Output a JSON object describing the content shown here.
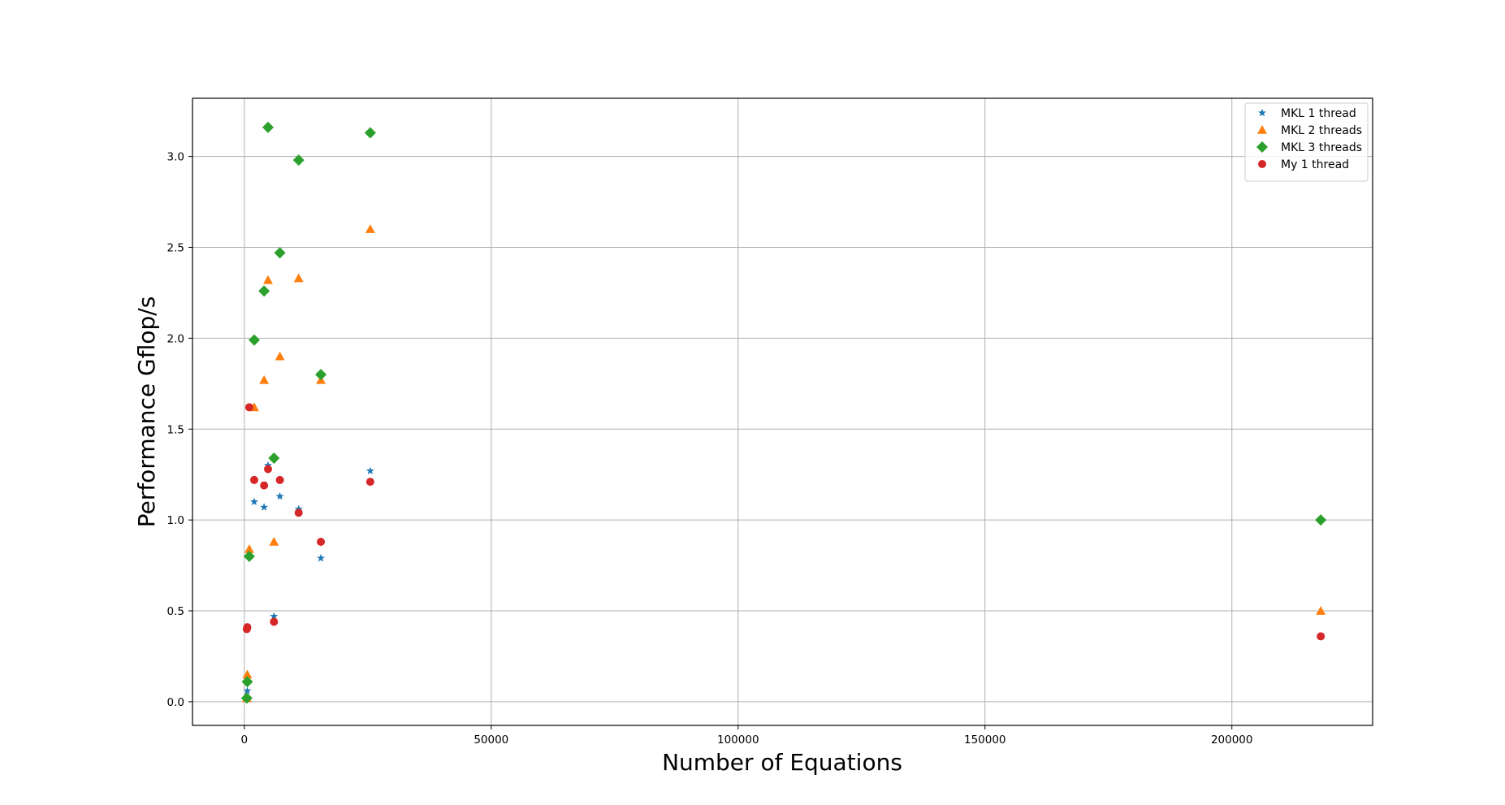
{
  "chart_data": {
    "type": "scatter",
    "title": "",
    "xlabel": "Number of Equations",
    "ylabel": "Performance Gflop/s",
    "xlim": [
      -10500,
      228500
    ],
    "ylim": [
      -0.13,
      3.32
    ],
    "xticks": [
      0,
      50000,
      100000,
      150000,
      200000
    ],
    "xtick_labels": [
      "0",
      "50000",
      "100000",
      "150000",
      "200000"
    ],
    "yticks": [
      0.0,
      0.5,
      1.0,
      1.5,
      2.0,
      2.5,
      3.0
    ],
    "ytick_labels": [
      "0.0",
      "0.5",
      "1.0",
      "1.5",
      "2.0",
      "2.5",
      "3.0"
    ],
    "grid": true,
    "legend_position": "top-right",
    "series": [
      {
        "name": "MKL 1 thread",
        "marker": "star",
        "color": "#1f77b4",
        "points": [
          {
            "x": 500,
            "y": 0.02
          },
          {
            "x": 600,
            "y": 0.06
          },
          {
            "x": 2000,
            "y": 1.1
          },
          {
            "x": 4000,
            "y": 1.07
          },
          {
            "x": 4800,
            "y": 1.3
          },
          {
            "x": 6000,
            "y": 0.47
          },
          {
            "x": 7200,
            "y": 1.13
          },
          {
            "x": 11000,
            "y": 1.06
          },
          {
            "x": 15500,
            "y": 0.79
          },
          {
            "x": 25500,
            "y": 1.27
          },
          {
            "x": 218000,
            "y": 0.36
          }
        ]
      },
      {
        "name": "MKL 2 threads",
        "marker": "triangle",
        "color": "#ff7f0e",
        "points": [
          {
            "x": 500,
            "y": 0.02
          },
          {
            "x": 600,
            "y": 0.15
          },
          {
            "x": 1000,
            "y": 0.84
          },
          {
            "x": 2000,
            "y": 1.62
          },
          {
            "x": 4000,
            "y": 1.77
          },
          {
            "x": 4800,
            "y": 2.32
          },
          {
            "x": 6000,
            "y": 0.88
          },
          {
            "x": 7200,
            "y": 1.9
          },
          {
            "x": 11000,
            "y": 2.33
          },
          {
            "x": 15500,
            "y": 1.77
          },
          {
            "x": 25500,
            "y": 2.6
          },
          {
            "x": 218000,
            "y": 0.5
          }
        ]
      },
      {
        "name": "MKL 3 threads",
        "marker": "diamond",
        "color": "#2ca02c",
        "points": [
          {
            "x": 500,
            "y": 0.02
          },
          {
            "x": 600,
            "y": 0.11
          },
          {
            "x": 1000,
            "y": 0.8
          },
          {
            "x": 2000,
            "y": 1.99
          },
          {
            "x": 4000,
            "y": 2.26
          },
          {
            "x": 4800,
            "y": 3.16
          },
          {
            "x": 6000,
            "y": 1.34
          },
          {
            "x": 7200,
            "y": 2.47
          },
          {
            "x": 11000,
            "y": 2.98
          },
          {
            "x": 15500,
            "y": 1.8
          },
          {
            "x": 25500,
            "y": 3.13
          },
          {
            "x": 218000,
            "y": 1.0
          }
        ]
      },
      {
        "name": "My 1 thread",
        "marker": "circle",
        "color": "#d62728",
        "points": [
          {
            "x": 500,
            "y": 0.4
          },
          {
            "x": 600,
            "y": 0.41
          },
          {
            "x": 1000,
            "y": 1.62
          },
          {
            "x": 2000,
            "y": 1.22
          },
          {
            "x": 4000,
            "y": 1.19
          },
          {
            "x": 4800,
            "y": 1.28
          },
          {
            "x": 6000,
            "y": 0.44
          },
          {
            "x": 7200,
            "y": 1.22
          },
          {
            "x": 11000,
            "y": 1.04
          },
          {
            "x": 15500,
            "y": 0.88
          },
          {
            "x": 25500,
            "y": 1.21
          },
          {
            "x": 218000,
            "y": 0.36
          }
        ]
      }
    ]
  }
}
